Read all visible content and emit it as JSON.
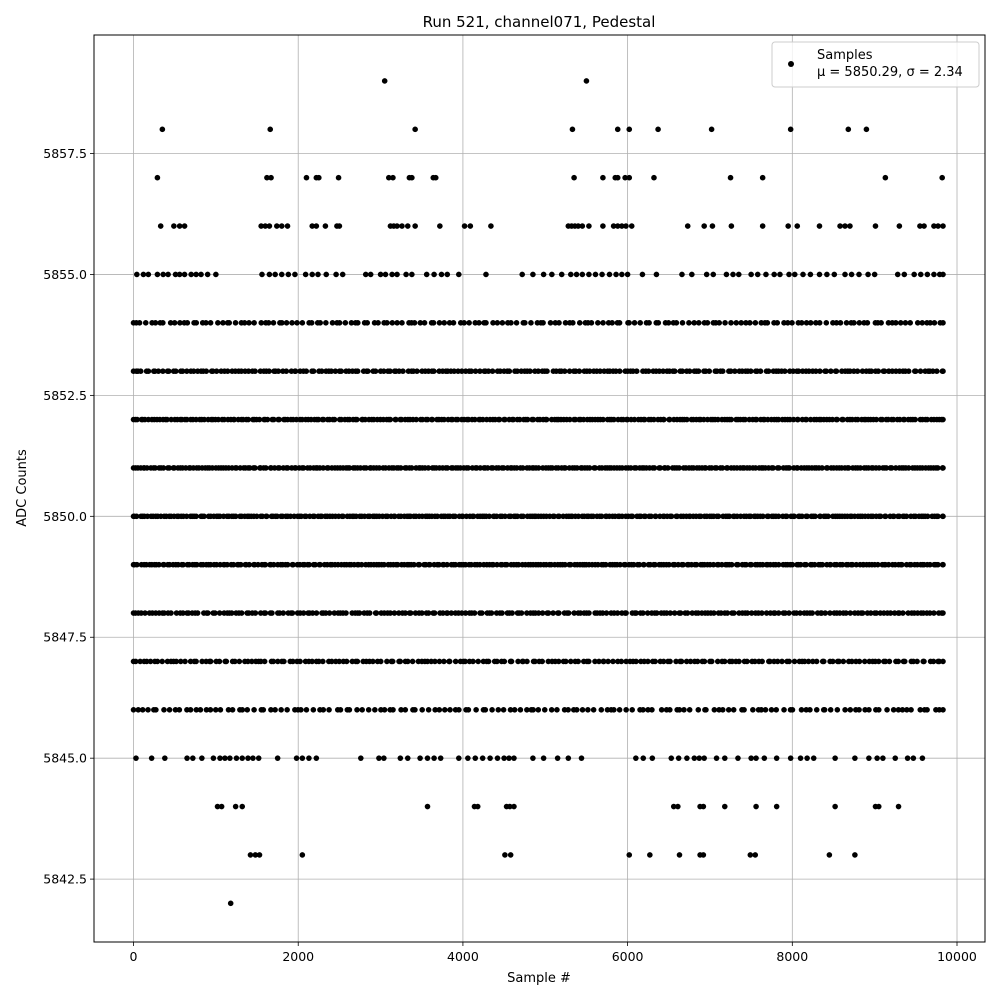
{
  "chart_data": {
    "type": "scatter",
    "title": "Run 521, channel071, Pedestal",
    "xlabel": "Sample #",
    "ylabel": "ADC Counts",
    "xlim": [
      -480,
      10340
    ],
    "ylim": [
      5841.2,
      5859.95
    ],
    "xticks": [
      0,
      2000,
      4000,
      6000,
      8000,
      10000
    ],
    "xtick_labels": [
      "0",
      "2000",
      "4000",
      "6000",
      "8000",
      "10000"
    ],
    "yticks": [
      5842.5,
      5845.0,
      5847.5,
      5850.0,
      5852.5,
      5855.0,
      5857.5
    ],
    "ytick_labels": [
      "5842.5",
      "5845.0",
      "5847.5",
      "5850.0",
      "5852.5",
      "5855.0",
      "5857.5"
    ],
    "grid": true,
    "marker_color": "#000000",
    "legend": {
      "placement": "top-right",
      "series_label": "Samples",
      "stats_label": "μ = 5850.29, σ = 2.34"
    },
    "series": [
      {
        "name": "Samples",
        "points": [
          [
            350,
            5858
          ],
          [
            1660,
            5858
          ],
          [
            3420,
            5858
          ],
          [
            5330,
            5858
          ],
          [
            5880,
            5858
          ],
          [
            6020,
            5858
          ],
          [
            6370,
            5858
          ],
          [
            7020,
            5858
          ],
          [
            7980,
            5858
          ],
          [
            8680,
            5858
          ],
          [
            8900,
            5858
          ],
          [
            3050,
            5859
          ],
          [
            5500,
            5859
          ],
          [
            290,
            5857
          ],
          [
            1620,
            5857
          ],
          [
            1670,
            5857
          ],
          [
            2100,
            5857
          ],
          [
            2220,
            5857
          ],
          [
            2250,
            5857
          ],
          [
            2490,
            5857
          ],
          [
            3100,
            5857
          ],
          [
            3150,
            5857
          ],
          [
            3350,
            5857
          ],
          [
            3380,
            5857
          ],
          [
            3640,
            5857
          ],
          [
            3670,
            5857
          ],
          [
            5350,
            5857
          ],
          [
            5700,
            5857
          ],
          [
            5850,
            5857
          ],
          [
            5880,
            5857
          ],
          [
            5970,
            5857
          ],
          [
            6020,
            5857
          ],
          [
            6320,
            5857
          ],
          [
            7250,
            5857
          ],
          [
            7640,
            5857
          ],
          [
            9130,
            5857
          ],
          [
            9820,
            5857
          ],
          [
            330,
            5856
          ],
          [
            490,
            5856
          ],
          [
            560,
            5856
          ],
          [
            620,
            5856
          ],
          [
            1550,
            5856
          ],
          [
            1600,
            5856
          ],
          [
            1650,
            5856
          ],
          [
            1740,
            5856
          ],
          [
            1800,
            5856
          ],
          [
            1870,
            5856
          ],
          [
            2170,
            5856
          ],
          [
            2220,
            5856
          ],
          [
            2330,
            5856
          ],
          [
            2470,
            5856
          ],
          [
            2500,
            5856
          ],
          [
            3120,
            5856
          ],
          [
            3160,
            5856
          ],
          [
            3200,
            5856
          ],
          [
            3260,
            5856
          ],
          [
            3330,
            5856
          ],
          [
            3420,
            5856
          ],
          [
            3720,
            5856
          ],
          [
            4020,
            5856
          ],
          [
            4090,
            5856
          ],
          [
            4340,
            5856
          ],
          [
            5280,
            5856
          ],
          [
            5320,
            5856
          ],
          [
            5360,
            5856
          ],
          [
            5400,
            5856
          ],
          [
            5450,
            5856
          ],
          [
            5530,
            5856
          ],
          [
            5700,
            5856
          ],
          [
            5830,
            5856
          ],
          [
            5880,
            5856
          ],
          [
            5930,
            5856
          ],
          [
            5980,
            5856
          ],
          [
            6050,
            5856
          ],
          [
            6730,
            5856
          ],
          [
            6930,
            5856
          ],
          [
            7030,
            5856
          ],
          [
            7260,
            5856
          ],
          [
            7640,
            5856
          ],
          [
            7950,
            5856
          ],
          [
            8060,
            5856
          ],
          [
            8330,
            5856
          ],
          [
            8580,
            5856
          ],
          [
            8640,
            5856
          ],
          [
            8700,
            5856
          ],
          [
            9010,
            5856
          ],
          [
            9300,
            5856
          ],
          [
            9550,
            5856
          ],
          [
            9600,
            5856
          ],
          [
            9720,
            5856
          ],
          [
            9770,
            5856
          ],
          [
            9830,
            5856
          ],
          [
            40,
            5855
          ],
          [
            120,
            5855
          ],
          [
            180,
            5855
          ],
          [
            290,
            5855
          ],
          [
            360,
            5855
          ],
          [
            420,
            5855
          ],
          [
            510,
            5855
          ],
          [
            560,
            5855
          ],
          [
            620,
            5855
          ],
          [
            700,
            5855
          ],
          [
            760,
            5855
          ],
          [
            820,
            5855
          ],
          [
            900,
            5855
          ],
          [
            1000,
            5855
          ],
          [
            1560,
            5855
          ],
          [
            1650,
            5855
          ],
          [
            1720,
            5855
          ],
          [
            1800,
            5855
          ],
          [
            1880,
            5855
          ],
          [
            1960,
            5855
          ],
          [
            2090,
            5855
          ],
          [
            2170,
            5855
          ],
          [
            2240,
            5855
          ],
          [
            2340,
            5855
          ],
          [
            2460,
            5855
          ],
          [
            2540,
            5855
          ],
          [
            2820,
            5855
          ],
          [
            2880,
            5855
          ],
          [
            3000,
            5855
          ],
          [
            3060,
            5855
          ],
          [
            3140,
            5855
          ],
          [
            3200,
            5855
          ],
          [
            3310,
            5855
          ],
          [
            3380,
            5855
          ],
          [
            3560,
            5855
          ],
          [
            3650,
            5855
          ],
          [
            3740,
            5855
          ],
          [
            3810,
            5855
          ],
          [
            3950,
            5855
          ],
          [
            4280,
            5855
          ],
          [
            4720,
            5855
          ],
          [
            4850,
            5855
          ],
          [
            4980,
            5855
          ],
          [
            5080,
            5855
          ],
          [
            5200,
            5855
          ],
          [
            5310,
            5855
          ],
          [
            5380,
            5855
          ],
          [
            5450,
            5855
          ],
          [
            5530,
            5855
          ],
          [
            5610,
            5855
          ],
          [
            5690,
            5855
          ],
          [
            5780,
            5855
          ],
          [
            5860,
            5855
          ],
          [
            5930,
            5855
          ],
          [
            6000,
            5855
          ],
          [
            6180,
            5855
          ],
          [
            6350,
            5855
          ],
          [
            6660,
            5855
          ],
          [
            6780,
            5855
          ],
          [
            6960,
            5855
          ],
          [
            7040,
            5855
          ],
          [
            7200,
            5855
          ],
          [
            7280,
            5855
          ],
          [
            7350,
            5855
          ],
          [
            7500,
            5855
          ],
          [
            7580,
            5855
          ],
          [
            7680,
            5855
          ],
          [
            7780,
            5855
          ],
          [
            7850,
            5855
          ],
          [
            7960,
            5855
          ],
          [
            8030,
            5855
          ],
          [
            8130,
            5855
          ],
          [
            8220,
            5855
          ],
          [
            8330,
            5855
          ],
          [
            8420,
            5855
          ],
          [
            8510,
            5855
          ],
          [
            8640,
            5855
          ],
          [
            8720,
            5855
          ],
          [
            8810,
            5855
          ],
          [
            8920,
            5855
          ],
          [
            9000,
            5855
          ],
          [
            9280,
            5855
          ],
          [
            9360,
            5855
          ],
          [
            9480,
            5855
          ],
          [
            9560,
            5855
          ],
          [
            9640,
            5855
          ],
          [
            9720,
            5855
          ],
          [
            9790,
            5855
          ],
          [
            9830,
            5855
          ],
          [
            1180,
            5842
          ],
          [
            1420,
            5843
          ],
          [
            1480,
            5843
          ],
          [
            1530,
            5843
          ],
          [
            2050,
            5843
          ],
          [
            4510,
            5843
          ],
          [
            4580,
            5843
          ],
          [
            6020,
            5843
          ],
          [
            6270,
            5843
          ],
          [
            6630,
            5843
          ],
          [
            6880,
            5843
          ],
          [
            6920,
            5843
          ],
          [
            7490,
            5843
          ],
          [
            7550,
            5843
          ],
          [
            8450,
            5843
          ],
          [
            8760,
            5843
          ],
          [
            1020,
            5844
          ],
          [
            1070,
            5844
          ],
          [
            1240,
            5844
          ],
          [
            1320,
            5844
          ],
          [
            3570,
            5844
          ],
          [
            4140,
            5844
          ],
          [
            4180,
            5844
          ],
          [
            4530,
            5844
          ],
          [
            4570,
            5844
          ],
          [
            4620,
            5844
          ],
          [
            6560,
            5844
          ],
          [
            6610,
            5844
          ],
          [
            6880,
            5844
          ],
          [
            6920,
            5844
          ],
          [
            7180,
            5844
          ],
          [
            7560,
            5844
          ],
          [
            7810,
            5844
          ],
          [
            8520,
            5844
          ],
          [
            9010,
            5844
          ],
          [
            9050,
            5844
          ],
          [
            9290,
            5844
          ],
          [
            30,
            5845
          ],
          [
            220,
            5845
          ],
          [
            380,
            5845
          ],
          [
            650,
            5845
          ],
          [
            720,
            5845
          ],
          [
            830,
            5845
          ],
          [
            970,
            5845
          ],
          [
            1050,
            5845
          ],
          [
            1110,
            5845
          ],
          [
            1170,
            5845
          ],
          [
            1250,
            5845
          ],
          [
            1320,
            5845
          ],
          [
            1390,
            5845
          ],
          [
            1450,
            5845
          ],
          [
            1520,
            5845
          ],
          [
            1750,
            5845
          ],
          [
            1980,
            5845
          ],
          [
            2050,
            5845
          ],
          [
            2130,
            5845
          ],
          [
            2220,
            5845
          ],
          [
            2760,
            5845
          ],
          [
            2980,
            5845
          ],
          [
            3040,
            5845
          ],
          [
            3240,
            5845
          ],
          [
            3330,
            5845
          ],
          [
            3480,
            5845
          ],
          [
            3570,
            5845
          ],
          [
            3650,
            5845
          ],
          [
            3730,
            5845
          ],
          [
            3950,
            5845
          ],
          [
            4060,
            5845
          ],
          [
            4150,
            5845
          ],
          [
            4240,
            5845
          ],
          [
            4330,
            5845
          ],
          [
            4420,
            5845
          ],
          [
            4500,
            5845
          ],
          [
            4560,
            5845
          ],
          [
            4620,
            5845
          ],
          [
            4850,
            5845
          ],
          [
            4980,
            5845
          ],
          [
            5150,
            5845
          ],
          [
            5280,
            5845
          ],
          [
            5440,
            5845
          ],
          [
            6100,
            5845
          ],
          [
            6190,
            5845
          ],
          [
            6300,
            5845
          ],
          [
            6530,
            5845
          ],
          [
            6620,
            5845
          ],
          [
            6720,
            5845
          ],
          [
            6810,
            5845
          ],
          [
            6870,
            5845
          ],
          [
            6930,
            5845
          ],
          [
            7080,
            5845
          ],
          [
            7180,
            5845
          ],
          [
            7340,
            5845
          ],
          [
            7500,
            5845
          ],
          [
            7560,
            5845
          ],
          [
            7660,
            5845
          ],
          [
            7810,
            5845
          ],
          [
            7980,
            5845
          ],
          [
            8100,
            5845
          ],
          [
            8180,
            5845
          ],
          [
            8260,
            5845
          ],
          [
            8520,
            5845
          ],
          [
            8760,
            5845
          ],
          [
            8930,
            5845
          ],
          [
            9030,
            5845
          ],
          [
            9100,
            5845
          ],
          [
            9250,
            5845
          ],
          [
            9400,
            5845
          ],
          [
            9470,
            5845
          ],
          [
            9580,
            5845
          ]
        ],
        "bands": [
          {
            "y": 5854,
            "x_from": 0,
            "x_to": 9830,
            "n": 170
          },
          {
            "y": 5853,
            "x_from": 0,
            "x_to": 9830,
            "n": 235
          },
          {
            "y": 5852,
            "x_from": 0,
            "x_to": 9830,
            "n": 290
          },
          {
            "y": 5851,
            "x_from": 0,
            "x_to": 9830,
            "n": 300
          },
          {
            "y": 5850,
            "x_from": 0,
            "x_to": 9830,
            "n": 310
          },
          {
            "y": 5849,
            "x_from": 0,
            "x_to": 9830,
            "n": 295
          },
          {
            "y": 5848,
            "x_from": 0,
            "x_to": 9830,
            "n": 240
          },
          {
            "y": 5847,
            "x_from": 0,
            "x_to": 9830,
            "n": 210
          },
          {
            "y": 5846,
            "x_from": 0,
            "x_to": 9830,
            "n": 150
          }
        ]
      }
    ]
  }
}
